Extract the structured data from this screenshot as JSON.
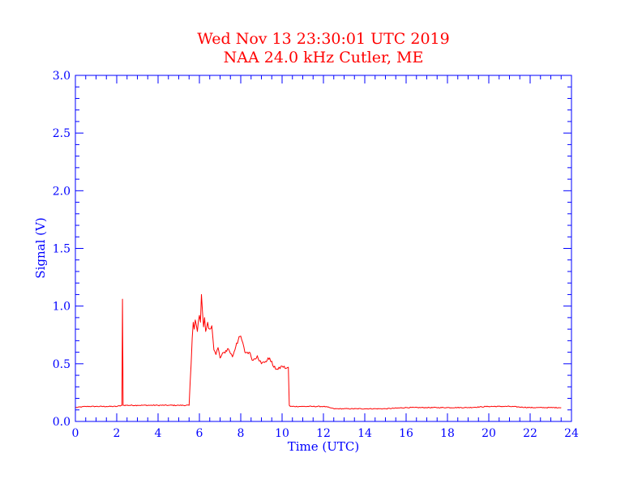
{
  "chart_data": {
    "type": "line",
    "title": "Wed Nov 13 23:30:01 UTC 2019",
    "subtitle": "NAA 24.0 kHz Cutler, ME",
    "xlabel": "Time (UTC)",
    "ylabel": "Signal (V)",
    "xlim": [
      0,
      24
    ],
    "ylim": [
      0,
      3.0
    ],
    "x_ticks": [
      "0",
      "2",
      "4",
      "6",
      "8",
      "10",
      "12",
      "14",
      "16",
      "18",
      "20",
      "22",
      "24"
    ],
    "y_ticks": [
      "0.0",
      "0.5",
      "1.0",
      "1.5",
      "2.0",
      "2.5",
      "3.0"
    ],
    "grid": false,
    "colors": {
      "axes": "#0000ff",
      "series": "#ff0000",
      "title": "#ff0000"
    },
    "series": [
      {
        "x": [
          0.0,
          0.5,
          1.0,
          1.5,
          2.0,
          2.25,
          2.28,
          2.31,
          2.35,
          3.0,
          3.5,
          4.0,
          4.5,
          5.0,
          5.5,
          5.6,
          5.65,
          5.7,
          5.75,
          5.8,
          5.9,
          6.0,
          6.05,
          6.1,
          6.15,
          6.2,
          6.25,
          6.3,
          6.4,
          6.5,
          6.6,
          6.7,
          6.8,
          6.9,
          7.0,
          7.2,
          7.4,
          7.6,
          7.8,
          8.0,
          8.2,
          8.4,
          8.6,
          8.8,
          9.0,
          9.2,
          9.4,
          9.6,
          9.8,
          10.0,
          10.2,
          10.3,
          10.35,
          10.4,
          11.0,
          11.5,
          12.0,
          12.3,
          12.5,
          13.0,
          14.0,
          15.0,
          16.0,
          17.0,
          18.0,
          19.0,
          20.0,
          21.0,
          22.0,
          23.0,
          23.5
        ],
        "y": [
          0.12,
          0.13,
          0.13,
          0.13,
          0.13,
          0.14,
          1.06,
          0.14,
          0.14,
          0.14,
          0.14,
          0.14,
          0.14,
          0.14,
          0.14,
          0.5,
          0.72,
          0.86,
          0.8,
          0.88,
          0.78,
          0.92,
          0.86,
          1.1,
          0.95,
          0.82,
          0.9,
          0.78,
          0.86,
          0.8,
          0.83,
          0.62,
          0.58,
          0.64,
          0.55,
          0.6,
          0.63,
          0.56,
          0.68,
          0.74,
          0.6,
          0.6,
          0.53,
          0.57,
          0.5,
          0.52,
          0.55,
          0.47,
          0.45,
          0.48,
          0.46,
          0.47,
          0.14,
          0.13,
          0.13,
          0.13,
          0.13,
          0.12,
          0.11,
          0.11,
          0.11,
          0.11,
          0.12,
          0.12,
          0.12,
          0.12,
          0.13,
          0.13,
          0.12,
          0.12,
          0.12
        ]
      }
    ]
  }
}
